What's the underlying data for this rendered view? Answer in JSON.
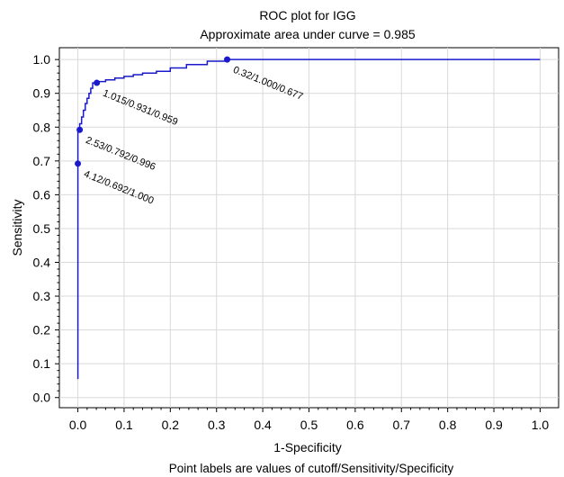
{
  "chart_data": {
    "type": "line",
    "title": "ROC plot for IGG",
    "subtitle": "Approximate area under curve = 0.985",
    "xlabel": "1-Specificity",
    "ylabel": "Sensitivity",
    "footnote": "Point labels are values of cutoff/Sensitivity/Specificity",
    "xlim": [
      -0.04,
      1.04
    ],
    "ylim": [
      -0.03,
      1.035
    ],
    "x_ticks": [
      "0.0",
      "0.1",
      "0.2",
      "0.3",
      "0.4",
      "0.5",
      "0.6",
      "0.7",
      "0.8",
      "0.9",
      "1.0"
    ],
    "y_ticks": [
      "0.0",
      "0.1",
      "0.2",
      "0.3",
      "0.4",
      "0.5",
      "0.6",
      "0.7",
      "0.8",
      "0.9",
      "1.0"
    ],
    "grid": true,
    "line_color": "#1a1acc",
    "series": [
      {
        "x": [
          0,
          0,
          0,
          0,
          0,
          0.004,
          0.004,
          0.008,
          0.008,
          0.012,
          0.012,
          0.016,
          0.016,
          0.02,
          0.02,
          0.024,
          0.024,
          0.028,
          0.028,
          0.032,
          0.032,
          0.041,
          0.041,
          0.06,
          0.06,
          0.08,
          0.08,
          0.1,
          0.1,
          0.12,
          0.12,
          0.14,
          0.14,
          0.17,
          0.17,
          0.2,
          0.2,
          0.235,
          0.235,
          0.28,
          0.28,
          0.323,
          0.323,
          1.0
        ],
        "y": [
          0.055,
          0.692,
          0.692,
          0.76,
          0.792,
          0.792,
          0.81,
          0.81,
          0.83,
          0.83,
          0.85,
          0.85,
          0.87,
          0.87,
          0.885,
          0.885,
          0.9,
          0.9,
          0.915,
          0.915,
          0.931,
          0.931,
          0.935,
          0.935,
          0.94,
          0.94,
          0.945,
          0.945,
          0.95,
          0.95,
          0.955,
          0.955,
          0.96,
          0.96,
          0.965,
          0.965,
          0.975,
          0.975,
          0.985,
          0.985,
          0.995,
          0.995,
          1.0,
          1.0
        ]
      }
    ],
    "points": [
      {
        "x": 0.0,
        "y": 0.692,
        "label": "4.12/0.692/1.000"
      },
      {
        "x": 0.004,
        "y": 0.792,
        "label": "2.53/0.792/0.996"
      },
      {
        "x": 0.041,
        "y": 0.931,
        "label": "1.015/0.931/0.959"
      },
      {
        "x": 0.323,
        "y": 1.0,
        "label": "0.32/1.000/0.677"
      }
    ]
  }
}
